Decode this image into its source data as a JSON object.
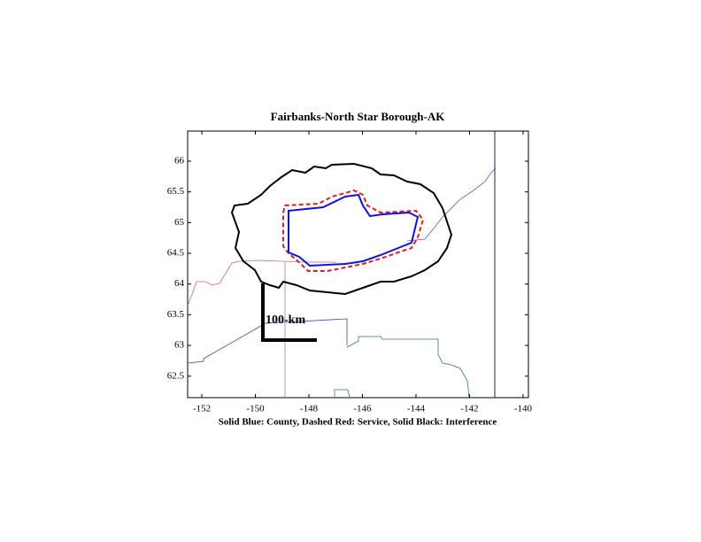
{
  "chart_data": {
    "type": "map",
    "title": "Fairbanks-North Star Borough-AK",
    "x_label": "Solid Blue: County, Dashed Red: Service, Solid Black: Interference",
    "scale_label": "100-km",
    "xlim": [
      -152.53,
      -139.8
    ],
    "ylim": [
      62.15,
      66.49
    ],
    "xticks": [
      -152,
      -150,
      -148,
      -146,
      -144,
      -142,
      -140
    ],
    "yticks": [
      62.5,
      63,
      63.5,
      64,
      64.5,
      65,
      65.5,
      66
    ]
  }
}
